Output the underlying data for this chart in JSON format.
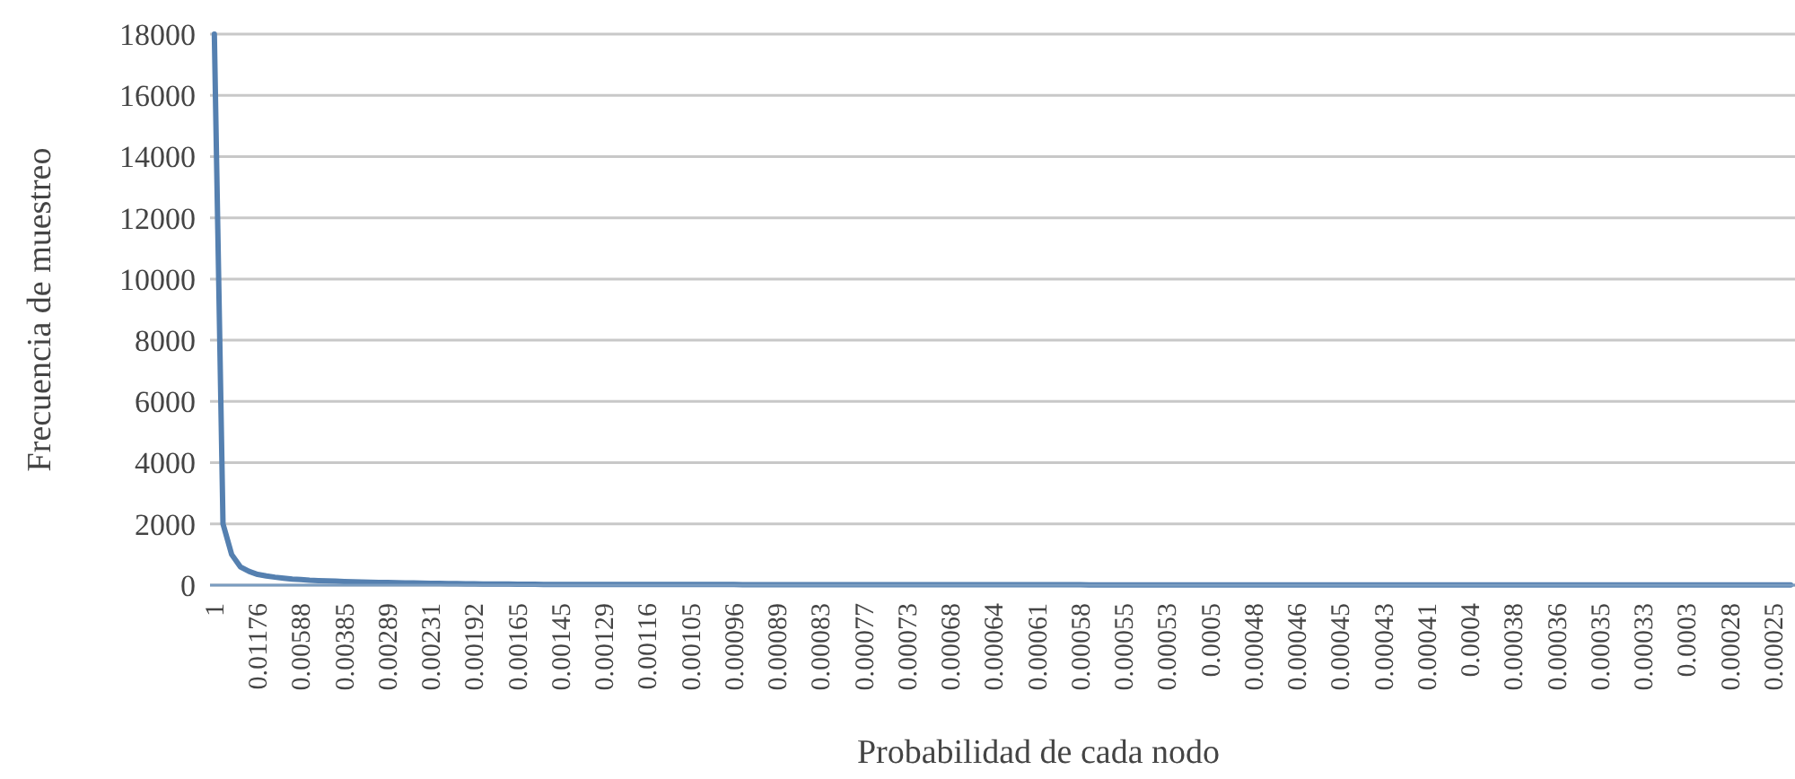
{
  "chart_data": {
    "type": "line",
    "xlabel": "Probabilidad de cada nodo",
    "ylabel": "Frecuencia de muestreo",
    "categories": [
      "1",
      null,
      null,
      null,
      null,
      "0.01176",
      null,
      null,
      null,
      null,
      "0.00588",
      null,
      null,
      null,
      null,
      "0.00385",
      null,
      null,
      null,
      null,
      "0.00289",
      null,
      null,
      null,
      null,
      "0.00231",
      null,
      null,
      null,
      null,
      "0.00192",
      null,
      null,
      null,
      null,
      "0.00165",
      null,
      null,
      null,
      null,
      "0.00145",
      null,
      null,
      null,
      null,
      "0.00129",
      null,
      null,
      null,
      null,
      "0.00116",
      null,
      null,
      null,
      null,
      "0.00105",
      null,
      null,
      null,
      null,
      "0.00096",
      null,
      null,
      null,
      null,
      "0.00089",
      null,
      null,
      null,
      null,
      "0.00083",
      null,
      null,
      null,
      null,
      "0.00077",
      null,
      null,
      null,
      null,
      "0.00073",
      null,
      null,
      null,
      null,
      "0.00068",
      null,
      null,
      null,
      null,
      "0.00064",
      null,
      null,
      null,
      null,
      "0.00061",
      null,
      null,
      null,
      null,
      "0.00058",
      null,
      null,
      null,
      null,
      "0.00055",
      null,
      null,
      null,
      null,
      "0.00053",
      null,
      null,
      null,
      null,
      "0.0005",
      null,
      null,
      null,
      null,
      "0.00048",
      null,
      null,
      null,
      null,
      "0.00046",
      null,
      null,
      null,
      null,
      "0.00045",
      null,
      null,
      null,
      null,
      "0.00043",
      null,
      null,
      null,
      null,
      "0.00041",
      null,
      null,
      null,
      null,
      "0.0004",
      null,
      null,
      null,
      null,
      "0.00038",
      null,
      null,
      null,
      null,
      "0.00036",
      null,
      null,
      null,
      null,
      "0.00035",
      null,
      null,
      null,
      null,
      "0.00033",
      null,
      null,
      null,
      null,
      "0.0003",
      null,
      null,
      null,
      null,
      "0.00028",
      null,
      null,
      null,
      null,
      "0.00025",
      null,
      null
    ],
    "series": [
      {
        "color": "#5580b0",
        "values": [
          18000,
          2000,
          1000,
          600,
          450,
          350,
          300,
          260,
          230,
          200,
          180,
          160,
          150,
          140,
          130,
          120,
          110,
          100,
          95,
          90,
          85,
          80,
          75,
          70,
          65,
          60,
          55,
          50,
          50,
          45,
          45,
          40,
          40,
          35,
          35,
          30,
          30,
          30,
          25,
          25,
          25,
          20,
          20,
          20,
          20,
          20,
          20,
          20,
          20,
          20,
          20,
          20,
          20,
          20,
          20,
          20,
          20,
          20,
          20,
          20,
          20,
          15,
          15,
          15,
          15,
          15,
          15,
          15,
          15,
          15,
          15,
          15,
          15,
          15,
          15,
          15,
          15,
          15,
          15,
          15,
          15,
          15,
          15,
          15,
          15,
          15,
          15,
          15,
          15,
          15,
          15,
          15,
          15,
          15,
          15,
          15,
          15,
          15,
          15,
          15,
          15,
          10,
          10,
          10,
          10,
          10,
          10,
          10,
          10,
          10,
          10,
          10,
          10,
          10,
          10,
          10,
          10,
          10,
          10,
          10,
          10,
          10,
          10,
          10,
          10,
          10,
          10,
          10,
          10,
          10,
          10,
          10,
          10,
          10,
          10,
          10,
          10,
          10,
          10,
          10,
          10,
          10,
          10,
          10,
          10,
          10,
          10,
          10,
          10,
          10,
          10,
          10,
          10,
          10,
          10,
          10,
          10,
          10,
          10,
          10,
          10,
          10,
          10,
          10,
          10,
          10,
          10,
          10,
          10,
          10,
          10,
          10,
          10,
          10,
          10,
          10,
          10,
          10,
          10,
          10,
          10,
          10,
          10
        ]
      }
    ],
    "ylim": [
      0,
      18000
    ],
    "yticks": [
      0,
      2000,
      4000,
      6000,
      8000,
      10000,
      12000,
      14000,
      16000,
      18000
    ],
    "grid": "y",
    "marker": "none",
    "line_style": "solid"
  }
}
